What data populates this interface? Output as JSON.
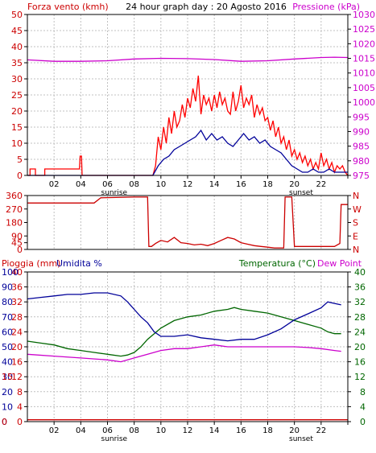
{
  "title": "24 hour graph day : 20 Agosto 2016",
  "colors": {
    "wind": "#ff0000",
    "gust": "#d40000",
    "avg": "#000099",
    "pressure": "#cc00cc",
    "dir": "#cc0000",
    "rain": "#cc0000",
    "humidity": "#000099",
    "temp": "#006600",
    "dew": "#cc00cc",
    "grid": "#c0c0c0",
    "axis": "#000000"
  },
  "chart_data": [
    {
      "type": "line",
      "name": "wind-pressure",
      "title": "24 hour graph day : 20 Agosto 2016",
      "left_label": "Forza vento (kmh)",
      "right_label": "Pressione (kPa)",
      "x_ticks": [
        "02",
        "04",
        "06",
        "08",
        "10",
        "12",
        "14",
        "16",
        "18",
        "20",
        "22",
        ""
      ],
      "x_sub": [
        {
          "x": 6.5,
          "label": "sunrise"
        },
        {
          "x": 20.5,
          "label": "sunset"
        }
      ],
      "xlim": [
        0,
        24
      ],
      "ylim": [
        0,
        50
      ],
      "y_ticks": [
        0,
        5,
        10,
        15,
        20,
        25,
        30,
        35,
        40,
        45,
        50
      ],
      "y2lim": [
        975,
        1030
      ],
      "y2_ticks": [
        975,
        980,
        985,
        990,
        995,
        1000,
        1005,
        1010,
        1015,
        1020,
        1025,
        1030
      ],
      "gust_x": [
        0,
        0.2,
        0.2,
        0.6,
        0.6,
        1.3,
        1.3,
        3.9,
        3.95,
        4.05,
        4.1,
        9.4,
        9.6,
        9.8,
        10.0,
        10.2,
        10.4,
        10.6,
        10.8,
        11.0,
        11.2,
        11.4,
        11.6,
        11.8,
        12.0,
        12.2,
        12.4,
        12.6,
        12.8,
        13.0,
        13.2,
        13.4,
        13.6,
        13.8,
        14.0,
        14.2,
        14.4,
        14.6,
        14.8,
        15.0,
        15.2,
        15.4,
        15.6,
        15.8,
        16.0,
        16.2,
        16.4,
        16.6,
        16.8,
        17.0,
        17.2,
        17.4,
        17.6,
        17.8,
        18.0,
        18.2,
        18.4,
        18.6,
        18.8,
        19.0,
        19.2,
        19.4,
        19.6,
        19.8,
        20.0,
        20.2,
        20.4,
        20.6,
        20.8,
        21.0,
        21.2,
        21.4,
        21.6,
        21.8,
        22.0,
        22.2,
        22.4,
        22.6,
        22.8,
        23.0,
        23.2,
        23.4,
        23.6,
        23.8,
        24.0
      ],
      "gust_y": [
        0,
        0,
        2,
        2,
        0,
        0,
        2,
        2,
        6,
        6,
        0,
        0,
        3,
        12,
        8,
        15,
        10,
        18,
        13,
        20,
        15,
        17,
        22,
        18,
        24,
        21,
        27,
        23,
        31,
        19,
        25,
        22,
        24,
        20,
        25,
        21,
        26,
        22,
        24,
        20,
        19,
        26,
        20,
        23,
        28,
        21,
        24,
        22,
        25,
        18,
        22,
        19,
        21,
        17,
        18,
        14,
        17,
        12,
        15,
        10,
        12,
        8,
        11,
        6,
        8,
        5,
        7,
        4,
        6,
        3,
        5,
        2,
        4,
        2,
        7,
        3,
        5,
        2,
        4,
        1,
        3,
        2,
        3,
        1,
        0
      ],
      "avg_x": [
        0,
        9.4,
        9.8,
        10.2,
        10.6,
        11.0,
        11.4,
        11.8,
        12.2,
        12.6,
        13.0,
        13.4,
        13.8,
        14.2,
        14.6,
        15.0,
        15.4,
        15.8,
        16.2,
        16.6,
        17.0,
        17.4,
        17.8,
        18.2,
        18.6,
        19.0,
        19.4,
        19.8,
        20.2,
        20.6,
        21.0,
        21.4,
        21.8,
        22.2,
        22.6,
        23.0,
        23.4,
        24.0
      ],
      "avg_y": [
        0,
        0,
        3,
        5,
        6,
        8,
        9,
        10,
        11,
        12,
        14,
        11,
        13,
        11,
        12,
        10,
        9,
        11,
        13,
        11,
        12,
        10,
        11,
        9,
        8,
        7,
        5,
        3,
        2,
        1,
        1,
        2,
        1,
        1,
        2,
        1,
        1,
        1
      ],
      "press_x": [
        0,
        2,
        4,
        6,
        8,
        10,
        12,
        14,
        16,
        18,
        20,
        22,
        23,
        24
      ],
      "press_y": [
        1014.5,
        1014,
        1014,
        1014.2,
        1014.8,
        1015,
        1014.9,
        1014.6,
        1014,
        1014.2,
        1014.8,
        1015.3,
        1015.4,
        1015.3
      ]
    },
    {
      "type": "line",
      "name": "wind-direction",
      "xlim": [
        0,
        24
      ],
      "ylim": [
        0,
        360
      ],
      "y_ticks": [
        0,
        45,
        90,
        180,
        270,
        360
      ],
      "right_ticks": [
        {
          "v": 360,
          "label": "N"
        },
        {
          "v": 270,
          "label": "W"
        },
        {
          "v": 180,
          "label": "S"
        },
        {
          "v": 90,
          "label": "E"
        },
        {
          "v": 0,
          "label": "N"
        }
      ],
      "dir_x": [
        0,
        5,
        5.5,
        8,
        9,
        9.1,
        9.3,
        9.6,
        10,
        10.5,
        11,
        11.5,
        12,
        12.5,
        13,
        13.5,
        14,
        14.5,
        15,
        15.5,
        16,
        16.5,
        17,
        17.5,
        18,
        18.5,
        19,
        19.2,
        19.3,
        19.8,
        20,
        20.1,
        21,
        22,
        23,
        23.4,
        23.5,
        24
      ],
      "dir_y": [
        310,
        310,
        345,
        350,
        350,
        20,
        20,
        40,
        60,
        50,
        80,
        45,
        40,
        30,
        35,
        25,
        40,
        60,
        80,
        70,
        45,
        35,
        25,
        20,
        15,
        10,
        10,
        10,
        350,
        350,
        20,
        20,
        20,
        20,
        20,
        40,
        300,
        300
      ]
    },
    {
      "type": "line",
      "name": "rain-humidity-temp",
      "left_label_1": "Pioggia (mm)",
      "left_label_2": "Umidita %",
      "right_label_1": "Temperatura (°C)",
      "right_label_2": "Dew Point",
      "xlim": [
        0,
        24
      ],
      "x_ticks": [
        "02",
        "04",
        "06",
        "08",
        "10",
        "12",
        "14",
        "16",
        "18",
        "20",
        "22",
        ""
      ],
      "x_sub": [
        {
          "x": 6.5,
          "label": "sunrise"
        },
        {
          "x": 20.5,
          "label": "sunset"
        }
      ],
      "y_ticks": [
        0,
        4,
        8,
        12,
        16,
        20,
        24,
        28,
        32,
        36,
        40
      ],
      "rain_ticks": [
        "0",
        "",
        "",
        "15",
        "",
        "",
        "",
        "",
        "",
        "",
        ""
      ],
      "hum_ticks": [
        "0",
        "10",
        "20",
        "30",
        "40",
        "50",
        "60",
        "70",
        "80",
        "90",
        "100"
      ],
      "y2lim": [
        0,
        40
      ],
      "y2_ticks": [
        0,
        4,
        8,
        12,
        16,
        20,
        24,
        28,
        32,
        36,
        40
      ],
      "temp_x": [
        0,
        1,
        2,
        3,
        4,
        5,
        6,
        7,
        7.5,
        8,
        8.5,
        9,
        10,
        11,
        12,
        13,
        14,
        15,
        15.5,
        16,
        17,
        18,
        19,
        20,
        21,
        22,
        22.5,
        23,
        23.5
      ],
      "temp_y": [
        21.5,
        21,
        20.5,
        19.5,
        19,
        18.5,
        18,
        17.5,
        17.8,
        18.5,
        20,
        22,
        25,
        27,
        28,
        28.5,
        29.5,
        30,
        30.5,
        30,
        29.5,
        29,
        28,
        27,
        26,
        25,
        24,
        23.5,
        23.5
      ],
      "dew_x": [
        0,
        2,
        4,
        6,
        7,
        8,
        9,
        10,
        11,
        12,
        13,
        14,
        15,
        16,
        17,
        18,
        19,
        20,
        21,
        22,
        23,
        23.5
      ],
      "dew_y": [
        18,
        17.5,
        17,
        16.5,
        16,
        17,
        18,
        19,
        19.5,
        19.5,
        20,
        20.5,
        20,
        20,
        20,
        20,
        20,
        20,
        19.8,
        19.5,
        19,
        18.8
      ],
      "hum_x": [
        0,
        1,
        2,
        3,
        4,
        5,
        6,
        7,
        7.5,
        8,
        8.5,
        9,
        9.5,
        10,
        11,
        12,
        13,
        14,
        15,
        16,
        17,
        18,
        19,
        20,
        21,
        22,
        22.5,
        23,
        23.5
      ],
      "hum_y": [
        82,
        83,
        84,
        85,
        85,
        86,
        86,
        84,
        80,
        75,
        70,
        66,
        60,
        57,
        57,
        58,
        56,
        55,
        54,
        55,
        55,
        58,
        62,
        68,
        72,
        76,
        80,
        79,
        78
      ],
      "rain_y": 0.5
    }
  ]
}
